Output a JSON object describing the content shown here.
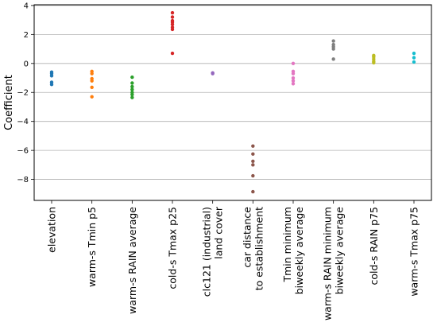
{
  "chart_data": {
    "type": "scatter",
    "ylabel": "Coefficient",
    "xlabel": "",
    "ylim": [
      -9.45,
      4.05
    ],
    "yticks": [
      4,
      2,
      0,
      -2,
      -4,
      -6,
      -8
    ],
    "ytick_labels": [
      "4",
      "2",
      "0",
      "−2",
      "−4",
      "−6",
      "−8"
    ],
    "grid": {
      "horizontal": true,
      "vertical": false
    },
    "categories": [
      {
        "lines": [
          "elevation"
        ],
        "color": "#1f77b4",
        "values": [
          -0.6,
          -0.7,
          -0.85,
          -1.3,
          -1.45
        ]
      },
      {
        "lines": [
          "warm-s Tmin p5"
        ],
        "color": "#ff7f0e",
        "values": [
          -0.55,
          -0.7,
          -1.05,
          -1.2,
          -1.65,
          -2.3
        ]
      },
      {
        "lines": [
          "warm-s RAIN average"
        ],
        "color": "#2ca02c",
        "values": [
          -0.95,
          -1.35,
          -1.6,
          -1.8,
          -2.0,
          -2.15,
          -2.35
        ]
      },
      {
        "lines": [
          "cold-s Tmax p25"
        ],
        "color": "#d62728",
        "values": [
          3.5,
          3.2,
          2.95,
          2.85,
          2.7,
          2.5,
          2.35,
          0.7
        ]
      },
      {
        "lines": [
          "clc121 (industrial)",
          "land cover"
        ],
        "color": "#9467bd",
        "values": [
          -0.65,
          -0.7
        ]
      },
      {
        "lines": [
          "car distance",
          "to establishment"
        ],
        "color": "#8c564b",
        "values": [
          -5.7,
          -6.25,
          -6.75,
          -7.0,
          -7.75,
          -8.85
        ]
      },
      {
        "lines": [
          "Tmin minimum",
          "biweekly average"
        ],
        "color": "#e377c2",
        "values": [
          0.0,
          -0.55,
          -0.7,
          -1.0,
          -1.2,
          -1.4
        ]
      },
      {
        "lines": [
          "warm-s RAIN minimum",
          "biweekly average"
        ],
        "color": "#7f7f7f",
        "values": [
          1.55,
          1.3,
          1.15,
          1.0,
          0.3
        ]
      },
      {
        "lines": [
          "cold-s RAIN p75"
        ],
        "color": "#bcbd22",
        "values": [
          0.55,
          0.45,
          0.3,
          0.15,
          0.05
        ]
      },
      {
        "lines": [
          "warm-s Tmax p75"
        ],
        "color": "#17becf",
        "values": [
          0.7,
          0.4,
          0.1
        ]
      }
    ]
  }
}
